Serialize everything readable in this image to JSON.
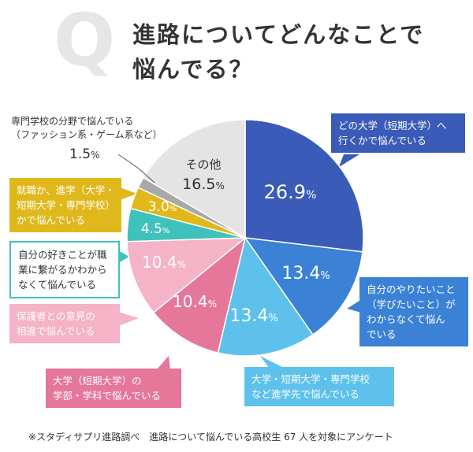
{
  "title": {
    "q": "Q",
    "line1": "進路についてどんなことで",
    "line2": "悩んでる？"
  },
  "footnote": "※スタディサプリ進路調べ　進路について悩んでいる高校生 67 人を対象にアンケート",
  "chart_data": {
    "type": "pie",
    "unit": "%",
    "slices": [
      {
        "label": "どの大学（短期大学）へ行くかで悩んでいる",
        "value": 26.9,
        "value_text": "26.9",
        "color": "#3a5bb8",
        "label_color": "#ffffff",
        "label_lines": [
          "どの大学（短期大学）へ",
          "行くかで悩んでいる"
        ],
        "box_color": "#3a5bb8",
        "box_text_color": "#ffffff"
      },
      {
        "label": "自分のやりたいこと（学びたいこと）がわからなくて悩んでいる",
        "value": 13.4,
        "value_text": "13.4",
        "color": "#3b82d6",
        "label_color": "#ffffff",
        "label_lines": [
          "自分のやりたいこと",
          "（学びたいこと）が",
          "わからなくて悩ん",
          "でいる"
        ],
        "box_color": "#3b82d6",
        "box_text_color": "#ffffff"
      },
      {
        "label": "大学・短期大学・専門学校など進学先で悩んでいる",
        "value": 13.4,
        "value_text": "13.4",
        "color": "#5ec1ec",
        "label_color": "#ffffff",
        "label_lines": [
          "大学・短期大学・専門学校",
          "など進学先で悩んでいる"
        ],
        "box_color": "#5ec1ec",
        "box_text_color": "#ffffff"
      },
      {
        "label": "大学（短期大学）の学部・学科で悩んでいる",
        "value": 10.4,
        "value_text": "10.4",
        "color": "#e5779a",
        "label_color": "#ffffff",
        "label_lines": [
          "大学（短期大学）の",
          "学部・学科で悩んでいる"
        ],
        "box_color": "#e5779a",
        "box_text_color": "#ffffff"
      },
      {
        "label": "保護者との意見の相違で悩んでいる",
        "value": 10.4,
        "value_text": "10.4",
        "color": "#f4b3c6",
        "label_color": "#ffffff",
        "label_lines": [
          "保護者との意見の",
          "相違で悩んでいる"
        ],
        "box_color": "#f4b3c6",
        "box_text_color": "#ffffff"
      },
      {
        "label": "自分の好きことが職業に繋がるかわからなくて悩んでいる",
        "value": 4.5,
        "value_text": "4.5",
        "color": "#3fc2bb",
        "label_color": "#ffffff",
        "label_lines": [
          "自分の好きことが職",
          "業に繋がるかわから",
          "なくて悩んでいる"
        ],
        "box_color": "#ffffff",
        "box_text_color": "#333333",
        "box_border": "#3fc2bb"
      },
      {
        "label": "就職か、進学（大学・短期大学・専門学校）かで悩んでいる",
        "value": 3.0,
        "value_text": "3.0",
        "color": "#e0b81c",
        "label_color": "#ffffff",
        "label_lines": [
          "就職か、進学（大学・",
          "短期大学・専門学校）",
          "かで悩んでいる"
        ],
        "box_color": "#e0b81c",
        "box_text_color": "#ffffff"
      },
      {
        "label": "専門学校の分野で悩んでいる（ファッション系・ゲーム系など）",
        "value": 1.5,
        "value_text": "1.5",
        "color": "#a9a9a9",
        "label_color": "#333333",
        "label_lines": [
          "専門学校の分野で悩んでいる",
          "（ファッション系・ゲーム系など）"
        ]
      },
      {
        "label": "その他",
        "value": 16.5,
        "value_text": "16.5",
        "color": "#e4e4e4",
        "label_color": "#333333",
        "label_lines": [
          "その他"
        ]
      }
    ]
  }
}
